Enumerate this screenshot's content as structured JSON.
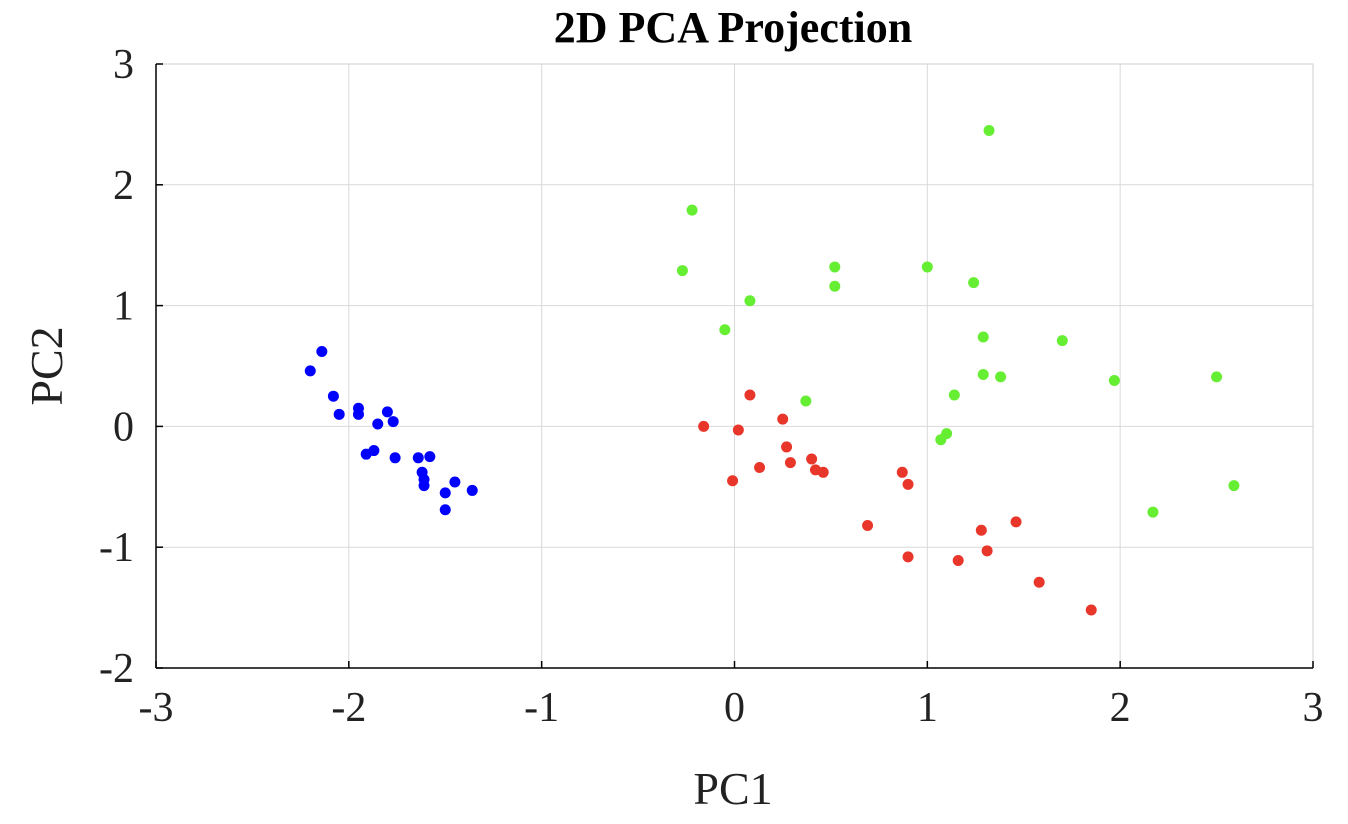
{
  "chart_data": {
    "type": "scatter",
    "title": "2D PCA Projection",
    "xlabel": "PC1",
    "ylabel": "PC2",
    "xlim": [
      -3,
      3
    ],
    "ylim": [
      -2,
      3
    ],
    "xticks": [
      -3,
      -2,
      -1,
      0,
      1,
      2,
      3
    ],
    "yticks": [
      -2,
      -1,
      0,
      1,
      2,
      3
    ],
    "xtick_labels": [
      "-3",
      "-2",
      "-1",
      "0",
      "1",
      "2",
      "3"
    ],
    "ytick_labels": [
      "-2",
      "-1",
      "0",
      "1",
      "2",
      "3"
    ],
    "grid": true,
    "legend": "none",
    "series": [
      {
        "color": "#0000ff",
        "points": [
          [
            -2.14,
            0.62
          ],
          [
            -2.2,
            0.46
          ],
          [
            -2.08,
            0.25
          ],
          [
            -2.05,
            0.1
          ],
          [
            -1.95,
            0.15
          ],
          [
            -1.95,
            0.1
          ],
          [
            -1.8,
            0.12
          ],
          [
            -1.77,
            0.04
          ],
          [
            -1.85,
            0.02
          ],
          [
            -1.87,
            -0.2
          ],
          [
            -1.91,
            -0.23
          ],
          [
            -1.76,
            -0.26
          ],
          [
            -1.64,
            -0.26
          ],
          [
            -1.58,
            -0.25
          ],
          [
            -1.62,
            -0.38
          ],
          [
            -1.61,
            -0.44
          ],
          [
            -1.61,
            -0.49
          ],
          [
            -1.45,
            -0.46
          ],
          [
            -1.36,
            -0.53
          ],
          [
            -1.5,
            -0.55
          ],
          [
            -1.5,
            -0.69
          ]
        ]
      },
      {
        "color": "#66ee33",
        "points": [
          [
            1.32,
            2.45
          ],
          [
            -0.22,
            1.79
          ],
          [
            -0.27,
            1.29
          ],
          [
            0.52,
            1.32
          ],
          [
            1.0,
            1.32
          ],
          [
            1.24,
            1.19
          ],
          [
            0.52,
            1.16
          ],
          [
            0.08,
            1.04
          ],
          [
            -0.05,
            0.8
          ],
          [
            1.29,
            0.74
          ],
          [
            1.7,
            0.71
          ],
          [
            1.29,
            0.43
          ],
          [
            1.38,
            0.41
          ],
          [
            1.97,
            0.38
          ],
          [
            2.5,
            0.41
          ],
          [
            0.37,
            0.21
          ],
          [
            1.14,
            0.26
          ],
          [
            1.1,
            -0.06
          ],
          [
            1.07,
            -0.11
          ],
          [
            2.59,
            -0.49
          ],
          [
            2.17,
            -0.71
          ]
        ]
      },
      {
        "color": "#e8362a",
        "points": [
          [
            0.08,
            0.26
          ],
          [
            0.25,
            0.06
          ],
          [
            -0.16,
            0.0
          ],
          [
            0.02,
            -0.03
          ],
          [
            0.27,
            -0.17
          ],
          [
            0.4,
            -0.27
          ],
          [
            0.29,
            -0.3
          ],
          [
            0.13,
            -0.34
          ],
          [
            0.42,
            -0.36
          ],
          [
            0.46,
            -0.38
          ],
          [
            -0.01,
            -0.45
          ],
          [
            0.87,
            -0.38
          ],
          [
            0.9,
            -0.48
          ],
          [
            0.69,
            -0.82
          ],
          [
            1.28,
            -0.86
          ],
          [
            1.46,
            -0.79
          ],
          [
            1.31,
            -1.03
          ],
          [
            0.9,
            -1.08
          ],
          [
            1.16,
            -1.11
          ],
          [
            1.58,
            -1.29
          ],
          [
            1.85,
            -1.52
          ]
        ]
      }
    ]
  }
}
